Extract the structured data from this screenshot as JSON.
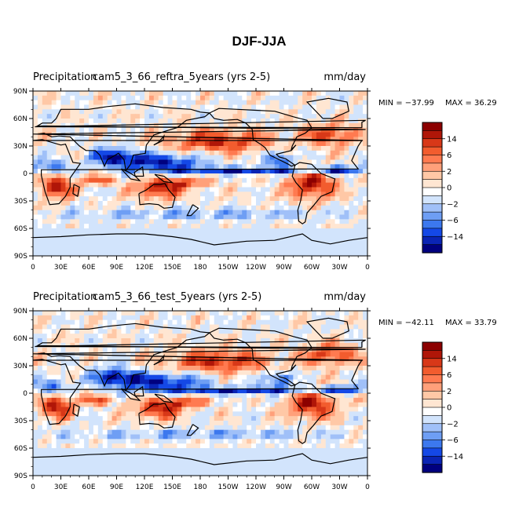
{
  "figure": {
    "title": "DJF-JJA"
  },
  "colors": {
    "levels": [
      "#00007f",
      "#0a24b4",
      "#1448e6",
      "#3c78ee",
      "#6e9ef4",
      "#a0c0f8",
      "#d2e4fc",
      "#ffffff",
      "#ffe6d2",
      "#ffc8a6",
      "#ffa07a",
      "#ff7a50",
      "#f25c2e",
      "#d83818",
      "#b01608",
      "#8c0000"
    ]
  },
  "chart_data": [
    {
      "type": "heatmap",
      "title": "Precipitation",
      "subtitle": "cam5_3_66_reftra_5years (yrs 2-5)",
      "units": "mm/day",
      "min_label": "MIN = −37.99",
      "max_label": "MAX =   36.29",
      "xlim": [
        0,
        360
      ],
      "ylim": [
        -90,
        90
      ],
      "x_ticks": [
        "0",
        "30E",
        "60E",
        "90E",
        "120E",
        "150E",
        "180",
        "150W",
        "120W",
        "90W",
        "60W",
        "30W",
        "0"
      ],
      "y_ticks": [
        "90N",
        "60N",
        "30N",
        "0",
        "30S",
        "60S",
        "90S"
      ],
      "colorbar_labels": [
        "14",
        "6",
        "2",
        "0",
        "−2",
        "−6",
        "−14"
      ],
      "colorbar_levels": 16
    },
    {
      "type": "heatmap",
      "title": "Precipitation",
      "subtitle": "cam5_3_66_test_5years (yrs 2-5)",
      "units": "mm/day",
      "min_label": "MIN = −42.11",
      "max_label": "MAX =   33.79",
      "xlim": [
        0,
        360
      ],
      "ylim": [
        -90,
        90
      ],
      "x_ticks": [
        "0",
        "30E",
        "60E",
        "90E",
        "120E",
        "150E",
        "180",
        "150W",
        "120W",
        "90W",
        "60W",
        "30W",
        "0"
      ],
      "y_ticks": [
        "90N",
        "60N",
        "30N",
        "0",
        "30S",
        "60S",
        "90S"
      ],
      "colorbar_labels": [
        "14",
        "6",
        "2",
        "0",
        "−2",
        "−6",
        "−14"
      ],
      "colorbar_levels": 16
    }
  ]
}
